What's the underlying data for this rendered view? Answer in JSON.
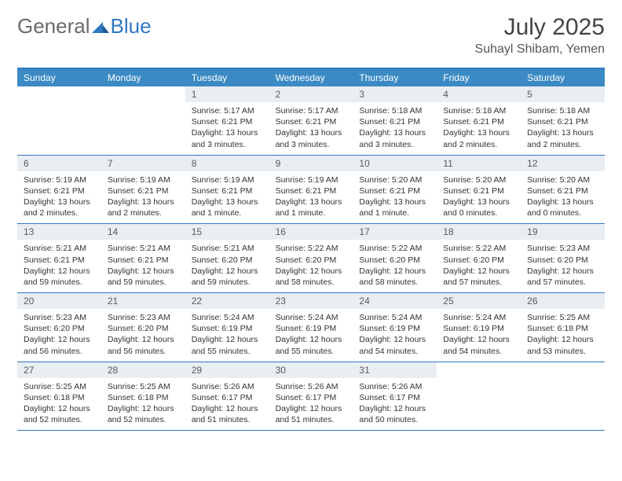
{
  "brand": {
    "part1": "General",
    "part2": "Blue"
  },
  "title": "July 2025",
  "location": "Suhayl Shibam, Yemen",
  "colors": {
    "header_bg": "#3b8ac4",
    "header_border": "#2f78c4",
    "daynum_bg": "#e9eef2",
    "logo_gray": "#6a6a6a",
    "logo_blue": "#2f78c4"
  },
  "dow": [
    "Sunday",
    "Monday",
    "Tuesday",
    "Wednesday",
    "Thursday",
    "Friday",
    "Saturday"
  ],
  "weeks": [
    [
      {
        "n": "",
        "empty": true
      },
      {
        "n": "",
        "empty": true
      },
      {
        "n": "1",
        "sunrise": "5:17 AM",
        "sunset": "6:21 PM",
        "daylight": "13 hours and 3 minutes."
      },
      {
        "n": "2",
        "sunrise": "5:17 AM",
        "sunset": "6:21 PM",
        "daylight": "13 hours and 3 minutes."
      },
      {
        "n": "3",
        "sunrise": "5:18 AM",
        "sunset": "6:21 PM",
        "daylight": "13 hours and 3 minutes."
      },
      {
        "n": "4",
        "sunrise": "5:18 AM",
        "sunset": "6:21 PM",
        "daylight": "13 hours and 2 minutes."
      },
      {
        "n": "5",
        "sunrise": "5:18 AM",
        "sunset": "6:21 PM",
        "daylight": "13 hours and 2 minutes."
      }
    ],
    [
      {
        "n": "6",
        "sunrise": "5:19 AM",
        "sunset": "6:21 PM",
        "daylight": "13 hours and 2 minutes."
      },
      {
        "n": "7",
        "sunrise": "5:19 AM",
        "sunset": "6:21 PM",
        "daylight": "13 hours and 2 minutes."
      },
      {
        "n": "8",
        "sunrise": "5:19 AM",
        "sunset": "6:21 PM",
        "daylight": "13 hours and 1 minute."
      },
      {
        "n": "9",
        "sunrise": "5:19 AM",
        "sunset": "6:21 PM",
        "daylight": "13 hours and 1 minute."
      },
      {
        "n": "10",
        "sunrise": "5:20 AM",
        "sunset": "6:21 PM",
        "daylight": "13 hours and 1 minute."
      },
      {
        "n": "11",
        "sunrise": "5:20 AM",
        "sunset": "6:21 PM",
        "daylight": "13 hours and 0 minutes."
      },
      {
        "n": "12",
        "sunrise": "5:20 AM",
        "sunset": "6:21 PM",
        "daylight": "13 hours and 0 minutes."
      }
    ],
    [
      {
        "n": "13",
        "sunrise": "5:21 AM",
        "sunset": "6:21 PM",
        "daylight": "12 hours and 59 minutes."
      },
      {
        "n": "14",
        "sunrise": "5:21 AM",
        "sunset": "6:21 PM",
        "daylight": "12 hours and 59 minutes."
      },
      {
        "n": "15",
        "sunrise": "5:21 AM",
        "sunset": "6:20 PM",
        "daylight": "12 hours and 59 minutes."
      },
      {
        "n": "16",
        "sunrise": "5:22 AM",
        "sunset": "6:20 PM",
        "daylight": "12 hours and 58 minutes."
      },
      {
        "n": "17",
        "sunrise": "5:22 AM",
        "sunset": "6:20 PM",
        "daylight": "12 hours and 58 minutes."
      },
      {
        "n": "18",
        "sunrise": "5:22 AM",
        "sunset": "6:20 PM",
        "daylight": "12 hours and 57 minutes."
      },
      {
        "n": "19",
        "sunrise": "5:23 AM",
        "sunset": "6:20 PM",
        "daylight": "12 hours and 57 minutes."
      }
    ],
    [
      {
        "n": "20",
        "sunrise": "5:23 AM",
        "sunset": "6:20 PM",
        "daylight": "12 hours and 56 minutes."
      },
      {
        "n": "21",
        "sunrise": "5:23 AM",
        "sunset": "6:20 PM",
        "daylight": "12 hours and 56 minutes."
      },
      {
        "n": "22",
        "sunrise": "5:24 AM",
        "sunset": "6:19 PM",
        "daylight": "12 hours and 55 minutes."
      },
      {
        "n": "23",
        "sunrise": "5:24 AM",
        "sunset": "6:19 PM",
        "daylight": "12 hours and 55 minutes."
      },
      {
        "n": "24",
        "sunrise": "5:24 AM",
        "sunset": "6:19 PM",
        "daylight": "12 hours and 54 minutes."
      },
      {
        "n": "25",
        "sunrise": "5:24 AM",
        "sunset": "6:19 PM",
        "daylight": "12 hours and 54 minutes."
      },
      {
        "n": "26",
        "sunrise": "5:25 AM",
        "sunset": "6:18 PM",
        "daylight": "12 hours and 53 minutes."
      }
    ],
    [
      {
        "n": "27",
        "sunrise": "5:25 AM",
        "sunset": "6:18 PM",
        "daylight": "12 hours and 52 minutes."
      },
      {
        "n": "28",
        "sunrise": "5:25 AM",
        "sunset": "6:18 PM",
        "daylight": "12 hours and 52 minutes."
      },
      {
        "n": "29",
        "sunrise": "5:26 AM",
        "sunset": "6:17 PM",
        "daylight": "12 hours and 51 minutes."
      },
      {
        "n": "30",
        "sunrise": "5:26 AM",
        "sunset": "6:17 PM",
        "daylight": "12 hours and 51 minutes."
      },
      {
        "n": "31",
        "sunrise": "5:26 AM",
        "sunset": "6:17 PM",
        "daylight": "12 hours and 50 minutes."
      },
      {
        "n": "",
        "empty": true
      },
      {
        "n": "",
        "empty": true
      }
    ]
  ],
  "labels": {
    "sunrise": "Sunrise:",
    "sunset": "Sunset:",
    "daylight": "Daylight:"
  }
}
